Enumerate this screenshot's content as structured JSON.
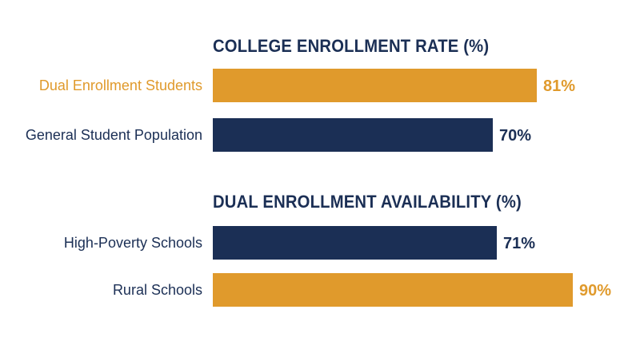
{
  "colors": {
    "gold": "#e09a2c",
    "navy": "#1b2f55"
  },
  "chart_data": [
    {
      "type": "bar",
      "orientation": "horizontal",
      "title": "COLLEGE ENROLLMENT RATE (%)",
      "categories": [
        "Dual Enrollment Students",
        "General Student Population"
      ],
      "values": [
        81,
        70
      ],
      "value_labels": [
        "81%",
        "70%"
      ],
      "bar_colors": [
        "#e09a2c",
        "#1b2f55"
      ],
      "label_colors": [
        "#e09a2c",
        "#1b2f55"
      ],
      "xlim": [
        0,
        100
      ],
      "grid": false
    },
    {
      "type": "bar",
      "orientation": "horizontal",
      "title": "DUAL ENROLLMENT AVAILABILITY (%)",
      "categories": [
        "High-Poverty Schools",
        "Rural Schools"
      ],
      "values": [
        71,
        90
      ],
      "value_labels": [
        "71%",
        "90%"
      ],
      "bar_colors": [
        "#1b2f55",
        "#e09a2c"
      ],
      "label_colors": [
        "#1b2f55",
        "#1b2f55"
      ],
      "xlim": [
        0,
        100
      ],
      "grid": false
    }
  ]
}
